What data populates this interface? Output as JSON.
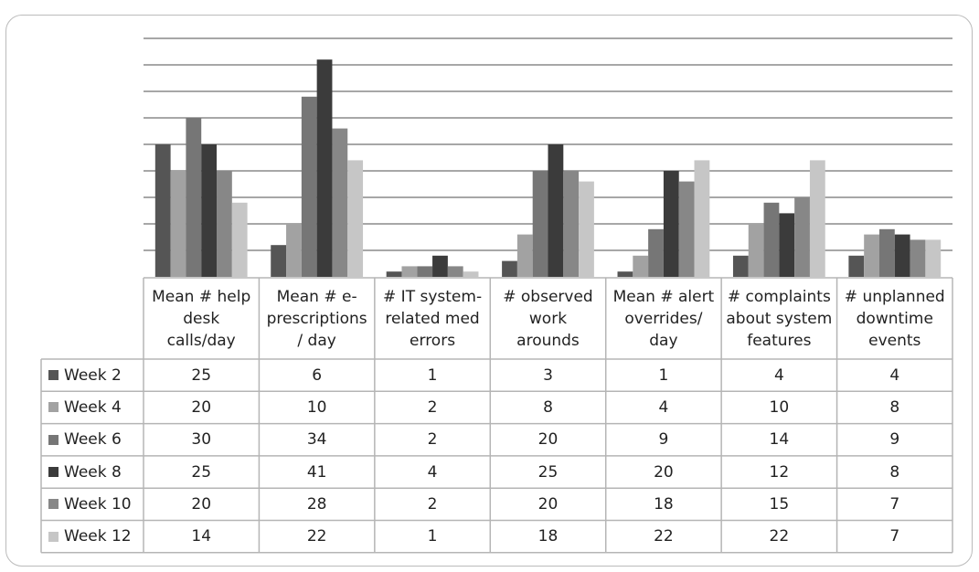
{
  "chart_data": {
    "type": "bar",
    "title": "",
    "xlabel": "",
    "ylabel": "",
    "ylim": [
      0,
      45
    ],
    "ytick_step": 5,
    "y_tick_labels_shown": false,
    "grid": true,
    "legend": "table-left",
    "categories": [
      "Mean #  help desk calls/day",
      "Mean # e-prescriptions / day",
      "# IT system-related med errors",
      "# observed work arounds",
      "Mean # alert overrides/ day",
      "# complaints about system features",
      "# unplanned downtime events"
    ],
    "series": [
      {
        "name": "Week 2",
        "color": "#555555",
        "values": [
          25,
          6,
          1,
          3,
          1,
          4,
          4
        ]
      },
      {
        "name": "Week 4",
        "color": "#a2a2a2",
        "values": [
          20,
          10,
          2,
          8,
          4,
          10,
          8
        ]
      },
      {
        "name": "Week 6",
        "color": "#767676",
        "values": [
          30,
          34,
          2,
          20,
          9,
          14,
          9
        ]
      },
      {
        "name": "Week 8",
        "color": "#3b3b3b",
        "values": [
          25,
          41,
          4,
          25,
          20,
          12,
          8
        ]
      },
      {
        "name": "Week 10",
        "color": "#878787",
        "values": [
          20,
          28,
          2,
          20,
          18,
          15,
          7
        ]
      },
      {
        "name": "Week 12",
        "color": "#c6c6c6",
        "values": [
          14,
          22,
          1,
          18,
          22,
          22,
          7
        ]
      }
    ]
  },
  "header_lines": [
    [
      "Mean #  help",
      "desk",
      "calls/day"
    ],
    [
      "Mean # e-",
      "prescriptions",
      "/ day"
    ],
    [
      "# IT system-",
      "related med",
      "errors"
    ],
    [
      "# observed",
      "work",
      "arounds"
    ],
    [
      "Mean # alert",
      "overrides/",
      "day"
    ],
    [
      "# complaints",
      "about system",
      "features"
    ],
    [
      "# unplanned",
      "downtime",
      "events"
    ]
  ]
}
